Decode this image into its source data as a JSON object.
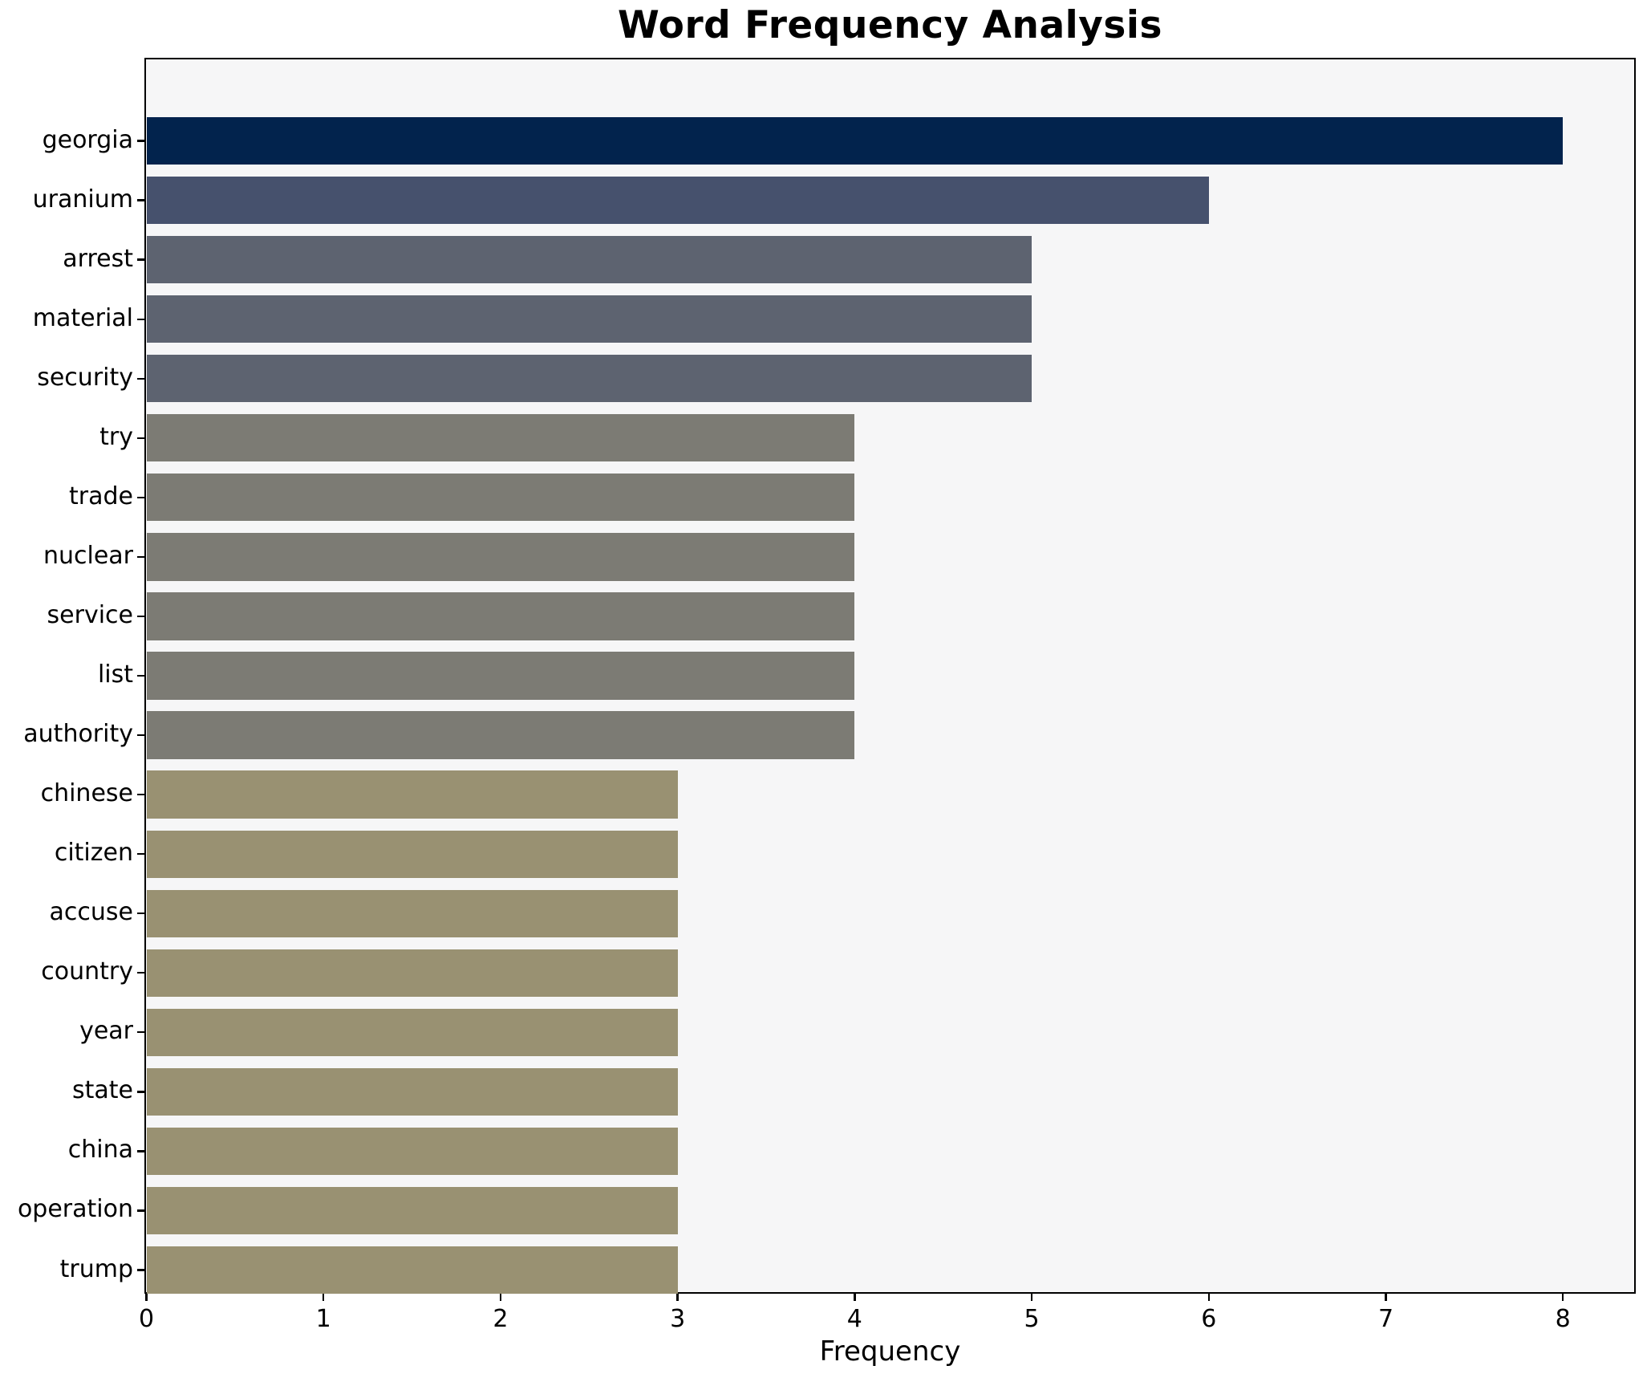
{
  "title": "Word Frequency Analysis",
  "xlabel": "Frequency",
  "chart_data": {
    "type": "bar",
    "orientation": "horizontal",
    "title": "Word Frequency Analysis",
    "xlabel": "Frequency",
    "ylabel": "",
    "categories": [
      "georgia",
      "uranium",
      "arrest",
      "material",
      "security",
      "try",
      "trade",
      "nuclear",
      "service",
      "list",
      "authority",
      "chinese",
      "citizen",
      "accuse",
      "country",
      "year",
      "state",
      "china",
      "operation",
      "trump"
    ],
    "values": [
      8,
      6,
      5,
      5,
      5,
      4,
      4,
      4,
      4,
      4,
      4,
      3,
      3,
      3,
      3,
      3,
      3,
      3,
      3,
      3
    ],
    "bar_colors": [
      "#02234d",
      "#46516d",
      "#5d6370",
      "#5d6370",
      "#5d6370",
      "#7c7b74",
      "#7c7b74",
      "#7c7b74",
      "#7c7b74",
      "#7c7b74",
      "#7c7b74",
      "#999172",
      "#999172",
      "#999172",
      "#999172",
      "#999172",
      "#999172",
      "#999172",
      "#999172",
      "#999172"
    ],
    "x_ticks": [
      0,
      1,
      2,
      3,
      4,
      5,
      6,
      7,
      8
    ],
    "xlim": [
      0,
      8.4
    ],
    "grid": false,
    "legend": false,
    "plot_background": "#f6f6f7",
    "figure_background": "#ffffff",
    "spine_color": "#000000"
  }
}
